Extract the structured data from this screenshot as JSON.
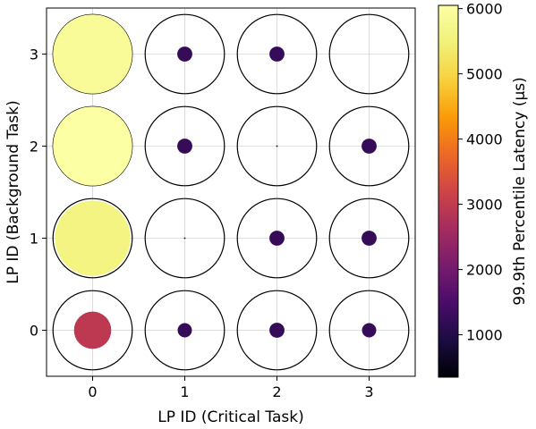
{
  "chart_data": {
    "type": "scatter",
    "xlabel": "LP ID (Critical Task)",
    "ylabel": "LP ID (Background Task)",
    "x_ticks": [
      "0",
      "1",
      "2",
      "3"
    ],
    "y_ticks": [
      "0",
      "1",
      "2",
      "3"
    ],
    "xlim": [
      -0.5,
      3.5
    ],
    "ylim": [
      -0.5,
      3.5
    ],
    "grid": true,
    "colormap": "inferno",
    "colorbar": {
      "label": "99.9th Percentile Latency (μs)",
      "min": 350,
      "max": 6050,
      "ticks": [
        "1000",
        "2000",
        "3000",
        "4000",
        "5000",
        "6000"
      ],
      "tick_values": [
        1000,
        2000,
        3000,
        4000,
        5000,
        6000
      ]
    },
    "outline_size": 1.0,
    "points": [
      {
        "x": 0,
        "y": 0,
        "size": 0.47,
        "latency": 2950
      },
      {
        "x": 1,
        "y": 0,
        "size": 0.18,
        "latency": 1250
      },
      {
        "x": 2,
        "y": 0,
        "size": 0.19,
        "latency": 1250
      },
      {
        "x": 3,
        "y": 0,
        "size": 0.18,
        "latency": 1250
      },
      {
        "x": 0,
        "y": 1,
        "size": 0.95,
        "latency": 5600
      },
      {
        "x": 1,
        "y": 1,
        "size": 0.02,
        "latency": 400
      },
      {
        "x": 2,
        "y": 1,
        "size": 0.19,
        "latency": 1250
      },
      {
        "x": 3,
        "y": 1,
        "size": 0.19,
        "latency": 1250
      },
      {
        "x": 0,
        "y": 2,
        "size": 1.0,
        "latency": 6050
      },
      {
        "x": 1,
        "y": 2,
        "size": 0.19,
        "latency": 1250
      },
      {
        "x": 2,
        "y": 2,
        "size": 0.02,
        "latency": 400
      },
      {
        "x": 3,
        "y": 2,
        "size": 0.19,
        "latency": 1250
      },
      {
        "x": 0,
        "y": 3,
        "size": 1.0,
        "latency": 5900
      },
      {
        "x": 1,
        "y": 3,
        "size": 0.19,
        "latency": 1250
      },
      {
        "x": 2,
        "y": 3,
        "size": 0.19,
        "latency": 1250
      },
      {
        "x": 3,
        "y": 3,
        "size": 0.0,
        "latency": 0
      }
    ]
  }
}
